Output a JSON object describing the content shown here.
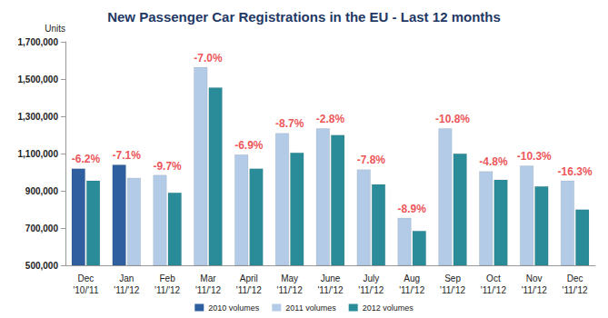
{
  "chart_data": {
    "type": "bar",
    "title": "New Passenger Car Registrations in the EU - Last 12 months",
    "y_label": "Units",
    "categories": [
      "Dec\n'10/'11",
      "Jan\n'11/'12",
      "Feb\n'11/'12",
      "Mar\n'11/'12",
      "April\n'11/'12",
      "May\n'11/'12",
      "June\n'11/'12",
      "July\n'11/'12",
      "Aug\n'11/'12",
      "Sep\n'11/'12",
      "Oct\n'11/'12",
      "Nov\n'11/'12",
      "Dec\n'11/'12"
    ],
    "series": [
      {
        "name": "2010 volumes",
        "color": "#2f5f9e",
        "values": [
          1020000,
          1040000,
          null,
          null,
          null,
          null,
          null,
          null,
          null,
          null,
          null,
          null,
          null
        ]
      },
      {
        "name": "2011 volumes",
        "color": "#b3cbe6",
        "values": [
          null,
          970000,
          985000,
          1565000,
          1095000,
          1210000,
          1235000,
          1015000,
          755000,
          1235000,
          1005000,
          1035000,
          955000
        ]
      },
      {
        "name": "2012 volumes",
        "color": "#2a8c99",
        "values": [
          955000,
          null,
          890000,
          1455000,
          1020000,
          1105000,
          1200000,
          935000,
          685000,
          1100000,
          960000,
          925000,
          800000
        ]
      }
    ],
    "annotations": [
      "-6.2%",
      "-7.1%",
      "-9.7%",
      "-7.0%",
      "-6.9%",
      "-8.7%",
      "-2.8%",
      "-7.8%",
      "-8.9%",
      "-10.8%",
      "-4.8%",
      "-10.3%",
      "-16.3%"
    ],
    "ylim": [
      500000,
      1700000
    ],
    "yticks": [
      {
        "value": 500000,
        "label": "500,000"
      },
      {
        "value": 700000,
        "label": "700,000"
      },
      {
        "value": 900000,
        "label": "900,000"
      },
      {
        "value": 1100000,
        "label": "1,100,000"
      },
      {
        "value": 1300000,
        "label": "1,300,000"
      },
      {
        "value": 1500000,
        "label": "1,500,000"
      },
      {
        "value": 1700000,
        "label": "1,700,000"
      }
    ],
    "grid": false,
    "legend": "bottom"
  }
}
